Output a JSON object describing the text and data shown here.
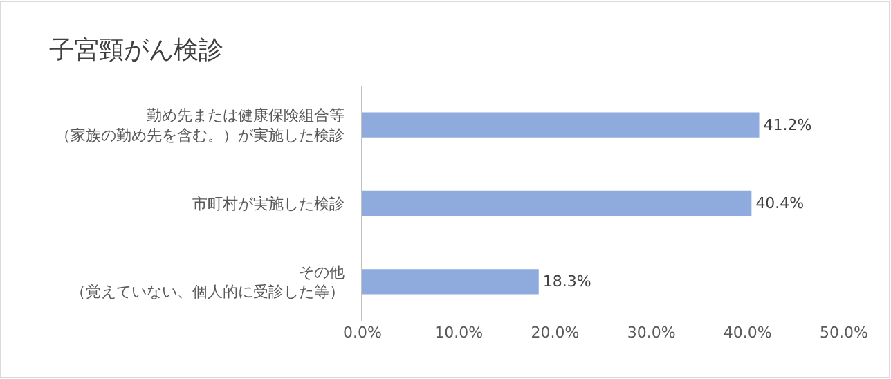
{
  "chart_data": {
    "type": "bar",
    "orientation": "horizontal",
    "title": "子宮頸がん検診",
    "categories": [
      "勤め先または健康保険組合等（家族の勤め先を含む。）が実施した検診",
      "市町村が実施した検診",
      "その他（覚えていない、個人的に受診した等）"
    ],
    "values": [
      41.2,
      40.4,
      18.3
    ],
    "value_labels": [
      "41.2%",
      "40.4%",
      "18.3%"
    ],
    "color": "#8faadc",
    "xlim": [
      0,
      50
    ],
    "xticks": [
      {
        "value": 0,
        "label": "0.0%"
      },
      {
        "value": 10,
        "label": "10.0%"
      },
      {
        "value": 20,
        "label": "20.0%"
      },
      {
        "value": 30,
        "label": "30.0%"
      },
      {
        "value": 40,
        "label": "40.0%"
      },
      {
        "value": 50,
        "label": "50.0%"
      }
    ],
    "grid": false,
    "legend": false
  }
}
